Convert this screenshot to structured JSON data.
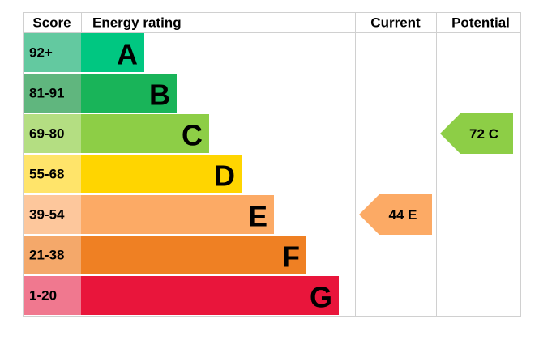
{
  "headers": {
    "score": "Score",
    "rating": "Energy rating",
    "current": "Current",
    "potential": "Potential"
  },
  "bands": [
    {
      "score": "92+",
      "letter": "A",
      "color": "#00c781",
      "score_color": "#63c9a0"
    },
    {
      "score": "81-91",
      "letter": "B",
      "color": "#19b459",
      "score_color": "#60b67e"
    },
    {
      "score": "69-80",
      "letter": "C",
      "color": "#8dce46",
      "score_color": "#b4de82"
    },
    {
      "score": "55-68",
      "letter": "D",
      "color": "#ffd500",
      "score_color": "#ffe46a"
    },
    {
      "score": "39-54",
      "letter": "E",
      "color": "#fcaa65",
      "score_color": "#fdc79c"
    },
    {
      "score": "21-38",
      "letter": "F",
      "color": "#ef8023",
      "score_color": "#f4a86a"
    },
    {
      "score": "1-20",
      "letter": "G",
      "color": "#e9153b",
      "score_color": "#f0788f"
    }
  ],
  "current": {
    "value": 44,
    "letter": "E"
  },
  "potential": {
    "value": 72,
    "letter": "C"
  }
}
